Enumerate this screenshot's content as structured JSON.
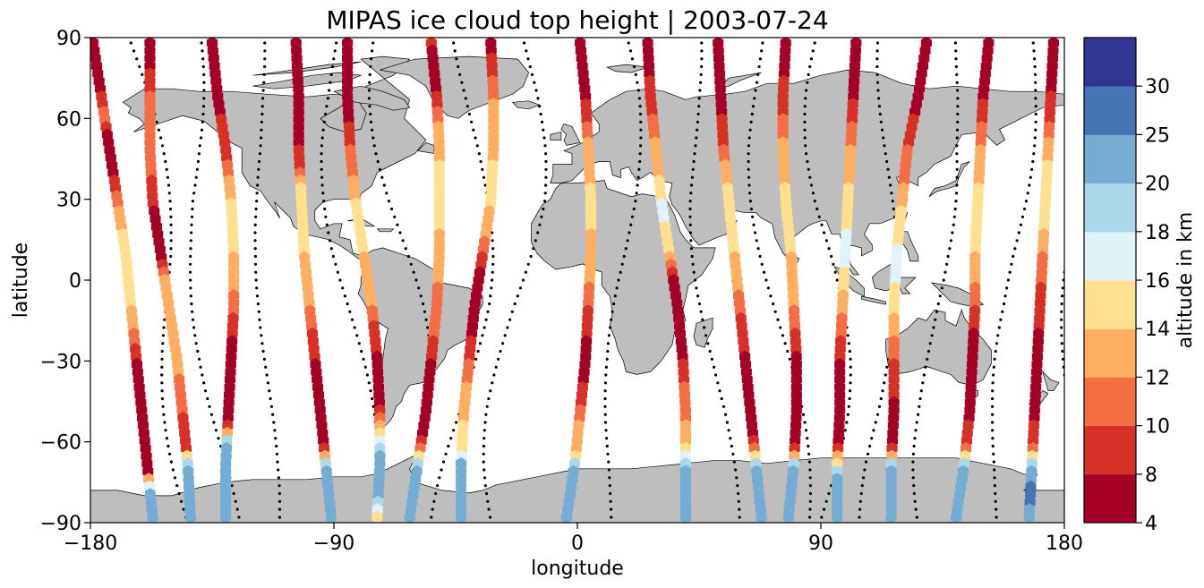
{
  "chart_data": {
    "type": "scatter",
    "title": "MIPAS ice cloud top height | 2003-07-24",
    "xlabel": "longitude",
    "ylabel": "latitude",
    "xlim": [
      -180,
      180
    ],
    "ylim": [
      -90,
      90
    ],
    "xticks": [
      -180,
      -90,
      0,
      90,
      180
    ],
    "yticks": [
      -90,
      -60,
      -30,
      0,
      30,
      60,
      90
    ],
    "xtick_labels": [
      "−180",
      "−90",
      "0",
      "90",
      "180"
    ],
    "ytick_labels": [
      "−90",
      "−60",
      "−30",
      "0",
      "30",
      "60",
      "90"
    ],
    "grid": false,
    "colorbar": {
      "label": "altitude in km",
      "bounds": [
        4,
        8,
        10,
        12,
        14,
        16,
        18,
        20,
        25,
        30
      ],
      "tick_labels": [
        "4",
        "8",
        "10",
        "12",
        "14",
        "16",
        "18",
        "20",
        "25",
        "30"
      ],
      "colors": [
        "#a50026",
        "#d73027",
        "#f46d43",
        "#fdae61",
        "#fee090",
        "#e0f3f8",
        "#abd9e9",
        "#74add1",
        "#4575b4",
        "#313695"
      ]
    },
    "land_color": "#bebebe",
    "orbits": [
      {
        "lons": [
          -179,
          -176,
          -173,
          -170,
          -167,
          -165,
          -163,
          -161,
          -159,
          -157
        ],
        "lat_start": 88,
        "lat_end": -88,
        "values": [
          6,
          6,
          7,
          11,
          7,
          6,
          9,
          12,
          14,
          15,
          15,
          14,
          12,
          9,
          7,
          6,
          6,
          8,
          7,
          22,
          22
        ]
      },
      {
        "lons": [
          -158,
          -158,
          -158,
          -157,
          -154,
          -151,
          -148,
          -146,
          -144,
          -143
        ],
        "lat_start": 88,
        "lat_end": -88,
        "values": [
          7,
          8,
          10,
          11,
          12,
          11,
          9,
          8,
          7,
          7,
          12,
          13,
          14,
          13,
          12,
          11,
          9,
          8,
          24,
          22,
          24
        ]
      },
      {
        "lons": [
          -135,
          -133,
          -130,
          -128,
          -127,
          -127,
          -128,
          -129,
          -130,
          -130
        ],
        "lat_start": 88,
        "lat_end": -88,
        "values": [
          6,
          6,
          7,
          8,
          9,
          10,
          13,
          15,
          15,
          14,
          13,
          11,
          9,
          7,
          6,
          6,
          7,
          22,
          22,
          22,
          24
        ]
      },
      {
        "lons": [
          -104,
          -103,
          -103,
          -102,
          -101,
          -99,
          -97,
          -95,
          -93,
          -91
        ],
        "lat_start": 88,
        "lat_end": -88,
        "values": [
          6,
          6,
          7,
          8,
          7,
          9,
          14,
          15,
          15,
          14,
          13,
          12,
          10,
          9,
          7,
          7,
          6,
          8,
          22,
          24,
          22
        ]
      },
      {
        "lons": [
          -85,
          -85,
          -84,
          -82,
          -79,
          -76,
          -74,
          -73,
          -73,
          -74
        ],
        "lat_start": 88,
        "lat_end": -88,
        "values": [
          6,
          6,
          6,
          7,
          9,
          11,
          13,
          15,
          15,
          14,
          13,
          12,
          9,
          8,
          7,
          6,
          11,
          19,
          22,
          22,
          15
        ]
      },
      {
        "lons": [
          -54,
          -52,
          -51,
          -51,
          -51,
          -52,
          -54,
          -56,
          -59,
          -62
        ],
        "lat_start": 88,
        "lat_end": -88,
        "values": [
          8,
          7,
          8,
          11,
          13,
          14,
          15,
          15,
          14,
          13,
          12,
          11,
          11,
          9,
          7,
          7,
          6,
          9,
          22,
          22,
          24
        ]
      },
      {
        "lons": [
          -32,
          -31,
          -31,
          -32,
          -35,
          -38,
          -40,
          -42,
          -43,
          -43
        ],
        "lat_start": 88,
        "lat_end": -88,
        "values": [
          7,
          9,
          11,
          13,
          13,
          14,
          15,
          14,
          13,
          9,
          7,
          7,
          7,
          9,
          11,
          13,
          14,
          15,
          22,
          24,
          22
        ]
      },
      {
        "lons": [
          1,
          3,
          4,
          5,
          5,
          4,
          3,
          1,
          -1,
          -4
        ],
        "lat_start": 88,
        "lat_end": -88,
        "values": [
          6,
          6,
          7,
          9,
          12,
          13,
          14,
          15,
          14,
          13,
          12,
          10,
          9,
          7,
          7,
          9,
          12,
          13,
          20,
          22,
          22
        ]
      },
      {
        "lons": [
          26,
          27,
          29,
          31,
          34,
          37,
          39,
          40,
          40,
          40
        ],
        "lat_start": 88,
        "lat_end": -88,
        "values": [
          7,
          7,
          9,
          10,
          12,
          13,
          15,
          17,
          15,
          14,
          7,
          6,
          6,
          7,
          9,
          11,
          12,
          14,
          22,
          24,
          22
        ]
      },
      {
        "lons": [
          52,
          53,
          54,
          56,
          58,
          60,
          62,
          64,
          66,
          68
        ],
        "lat_start": 88,
        "lat_end": -88,
        "values": [
          6,
          7,
          7,
          8,
          9,
          12,
          14,
          16,
          15,
          14,
          13,
          11,
          9,
          8,
          7,
          6,
          7,
          9,
          22,
          22,
          24
        ]
      },
      {
        "lons": [
          77,
          76,
          76,
          77,
          79,
          80,
          81,
          81,
          80,
          78
        ],
        "lat_start": 88,
        "lat_end": -88,
        "values": [
          6,
          7,
          9,
          10,
          12,
          13,
          14,
          15,
          15,
          14,
          13,
          12,
          10,
          8,
          7,
          6,
          6,
          8,
          22,
          24,
          22
        ]
      },
      {
        "lons": [
          103,
          102,
          101,
          100,
          99,
          98,
          97,
          97,
          96,
          96
        ],
        "lat_start": 88,
        "lat_end": -88,
        "values": [
          6,
          6,
          7,
          9,
          11,
          13,
          14,
          15,
          16,
          17,
          15,
          13,
          11,
          9,
          7,
          6,
          6,
          7,
          19,
          22,
          24
        ]
      },
      {
        "lons": [
          129,
          126,
          122,
          120,
          118,
          117,
          117,
          117,
          116,
          116
        ],
        "lat_start": 88,
        "lat_end": -88,
        "values": [
          6,
          6,
          7,
          8,
          9,
          11,
          12,
          14,
          15,
          17,
          16,
          15,
          13,
          11,
          9,
          8,
          7,
          7,
          22,
          22,
          24
        ]
      },
      {
        "lons": [
          152,
          150,
          149,
          148,
          147,
          147,
          146,
          145,
          143,
          140
        ],
        "lat_start": 88,
        "lat_end": -88,
        "values": [
          7,
          6,
          7,
          9,
          11,
          13,
          14,
          15,
          16,
          14,
          12,
          10,
          8,
          7,
          6,
          7,
          8,
          10,
          22,
          24,
          22
        ]
      },
      {
        "lons": [
          176,
          175,
          174,
          173,
          172,
          171,
          170,
          169,
          168,
          167
        ],
        "lat_start": 88,
        "lat_end": -88,
        "values": [
          6,
          7,
          8,
          9,
          12,
          14,
          15,
          15,
          14,
          12,
          10,
          9,
          8,
          7,
          7,
          6,
          8,
          10,
          22,
          28,
          22
        ]
      }
    ]
  }
}
